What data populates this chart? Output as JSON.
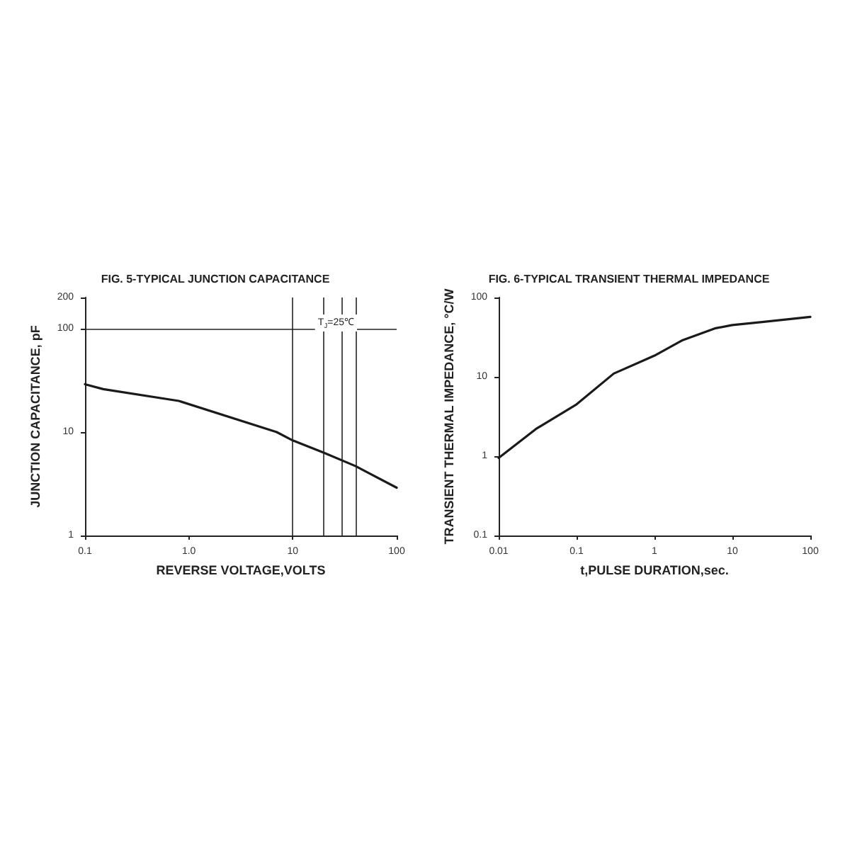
{
  "chart_data": [
    {
      "type": "line",
      "title": "FIG. 5-TYPICAL JUNCTION CAPACITANCE",
      "xlabel": "REVERSE VOLTAGE,VOLTS",
      "ylabel": "JUNCTION CAPACITANCE, pF",
      "log": "xy",
      "x": [
        0.1,
        0.15,
        0.8,
        7,
        10,
        20,
        40,
        100
      ],
      "series": [
        {
          "color": "#1a1a1a",
          "values": [
            29,
            26,
            20,
            10,
            8.3,
            6.3,
            4.7,
            2.9
          ]
        }
      ],
      "xlim": [
        0.1,
        100
      ],
      "xticks": [
        0.1,
        {
          "value": 1,
          "label": "1.0"
        },
        10,
        100
      ],
      "ylim": [
        1,
        200
      ],
      "yticks": [
        1,
        10,
        100,
        200
      ],
      "ref_lines": [
        {
          "axis": "x",
          "value": 10
        },
        {
          "axis": "x",
          "value": 20
        },
        {
          "axis": "x",
          "value": 30
        },
        {
          "axis": "x",
          "value": 40
        },
        {
          "axis": "y",
          "value": 100
        }
      ],
      "annotations": [
        "T$_{J}$=25℃"
      ],
      "grid": false,
      "marker": "none",
      "line_style": "solid"
    },
    {
      "type": "line",
      "title": "FIG. 6-TYPICAL TRANSIENT THERMAL IMPEDANCE",
      "xlabel": "t,PULSE DURATION,sec.",
      "ylabel": "TRANSIENT THERMAL IMPEDANCE, °C/W",
      "log": "xy",
      "x": [
        0.01,
        0.03,
        0.1,
        0.3,
        1,
        2.3,
        6.1,
        10,
        24,
        100
      ],
      "series": [
        {
          "color": "#1a1a1a",
          "values": [
            0.95,
            2.2,
            4.5,
            11,
            18.5,
            29,
            41,
            45,
            49,
            57
          ]
        }
      ],
      "xlim": [
        0.01,
        100
      ],
      "xticks": [
        0.01,
        0.1,
        1,
        10,
        100
      ],
      "ylim": [
        0.1,
        100
      ],
      "yticks": [
        0.1,
        1,
        10,
        100
      ],
      "grid": false,
      "marker": "none",
      "line_style": "solid"
    }
  ]
}
